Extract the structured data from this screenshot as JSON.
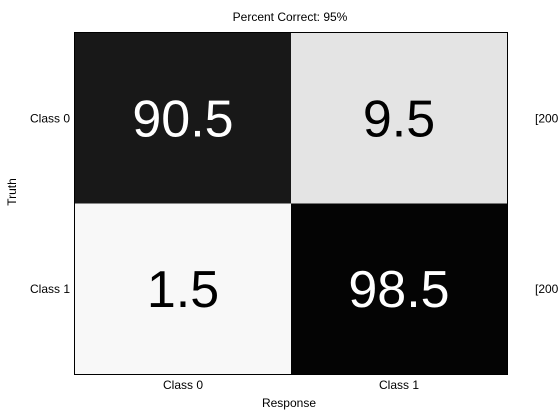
{
  "chart_data": {
    "type": "heatmap",
    "title": "Percent Correct: 95%",
    "xlabel": "Response",
    "ylabel": "Truth",
    "x_categories": [
      "Class 0",
      "Class 1"
    ],
    "y_categories": [
      "Class 0",
      "Class 1"
    ],
    "values": [
      [
        90.5,
        9.5
      ],
      [
        1.5,
        98.5
      ]
    ],
    "value_labels": [
      [
        "90.5",
        "9.5"
      ],
      [
        "1.5",
        "98.5"
      ]
    ],
    "row_annotations": [
      "[200",
      "[200"
    ],
    "colormap": "gray_reversed",
    "value_range": [
      0,
      100
    ],
    "grid": false,
    "legend": "none"
  }
}
